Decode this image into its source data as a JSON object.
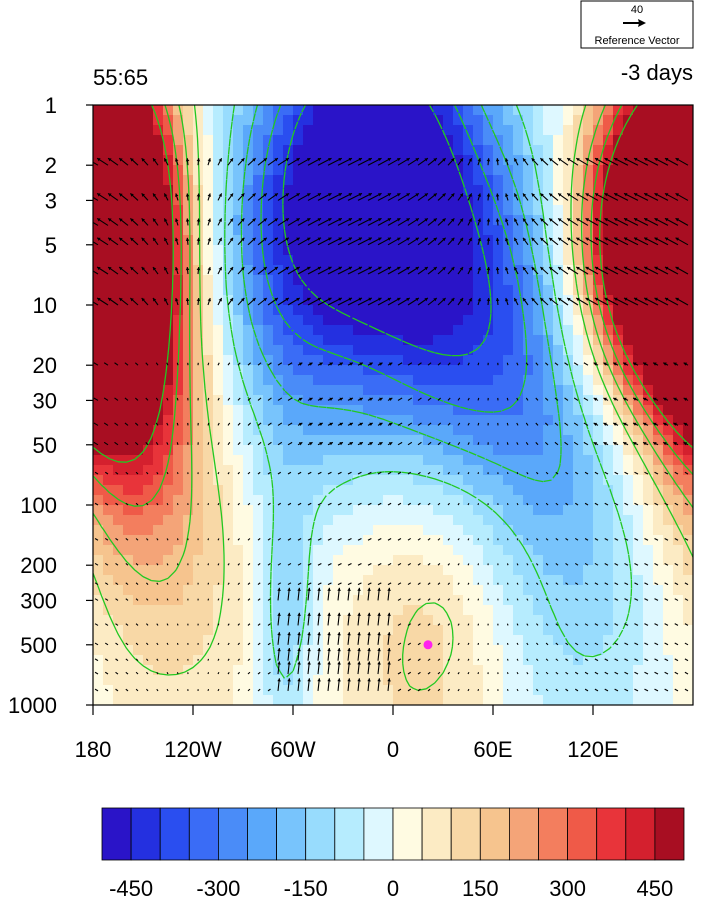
{
  "chart_data": {
    "type": "heatmap",
    "title_left": "55:65",
    "title_right": "-3 days",
    "reference_vector": {
      "magnitude_label": "40",
      "label": "Reference Vector"
    },
    "x_axis": {
      "range": [
        -180,
        180
      ],
      "ticks": [
        {
          "value": -180,
          "label": "180"
        },
        {
          "value": -120,
          "label": "120W"
        },
        {
          "value": -60,
          "label": "60W"
        },
        {
          "value": 0,
          "label": "0"
        },
        {
          "value": 60,
          "label": "60E"
        },
        {
          "value": 120,
          "label": "120E"
        }
      ]
    },
    "y_axis": {
      "scale": "log",
      "reversed": true,
      "range": [
        1,
        1000
      ],
      "ticks": [
        {
          "value": 1,
          "label": "1"
        },
        {
          "value": 2,
          "label": "2"
        },
        {
          "value": 3,
          "label": "3"
        },
        {
          "value": 5,
          "label": "5"
        },
        {
          "value": 10,
          "label": "10"
        },
        {
          "value": 20,
          "label": "20"
        },
        {
          "value": 30,
          "label": "30"
        },
        {
          "value": 50,
          "label": "50"
        },
        {
          "value": 100,
          "label": "100"
        },
        {
          "value": 200,
          "label": "200"
        },
        {
          "value": 300,
          "label": "300"
        },
        {
          "value": 500,
          "label": "500"
        },
        {
          "value": 1000,
          "label": "1000"
        }
      ]
    },
    "colorbar": {
      "levels": [
        -500,
        -450,
        -400,
        -350,
        -300,
        -250,
        -200,
        -150,
        -100,
        -50,
        0,
        50,
        100,
        150,
        200,
        250,
        300,
        350,
        400,
        450,
        500
      ],
      "colors": [
        "#2a14c8",
        "#2430e0",
        "#2a4ef0",
        "#3a6cf6",
        "#4a8cf8",
        "#5aa8fa",
        "#78c4fc",
        "#98dcfd",
        "#b6ecfe",
        "#def8ff",
        "#fffbe2",
        "#fcebc4",
        "#f8d8a6",
        "#f6c48e",
        "#f4a478",
        "#f37e5e",
        "#ef5a48",
        "#e8343a",
        "#d4202e",
        "#a80e22"
      ],
      "tick_labels": [
        {
          "value": -450,
          "label": "-450"
        },
        {
          "value": -300,
          "label": "-300"
        },
        {
          "value": -150,
          "label": "-150"
        },
        {
          "value": 0,
          "label": "0"
        },
        {
          "value": 150,
          "label": "150"
        },
        {
          "value": 300,
          "label": "300"
        },
        {
          "value": 450,
          "label": "450"
        }
      ]
    },
    "shading_field": {
      "description_of_centers": "pattern of anomaly centers, value units as colorbar",
      "centers": [
        {
          "lon": -165,
          "p": 3,
          "value": 520,
          "slon": 28,
          "sp": 0.55
        },
        {
          "lon": -170,
          "p": 12,
          "value": 430,
          "slon": 30,
          "sp": 0.55
        },
        {
          "lon": -150,
          "p": 40,
          "value": 200,
          "slon": 40,
          "sp": 0.6
        },
        {
          "lon": 165,
          "p": 3,
          "value": 520,
          "slon": 30,
          "sp": 0.55
        },
        {
          "lon": 140,
          "p": 6,
          "value": 380,
          "slon": 30,
          "sp": 0.5
        },
        {
          "lon": -10,
          "p": 2,
          "value": -560,
          "slon": 45,
          "sp": 0.6
        },
        {
          "lon": 40,
          "p": 15,
          "value": -330,
          "slon": 55,
          "sp": 0.7
        },
        {
          "lon": -70,
          "p": 10,
          "value": -220,
          "slon": 35,
          "sp": 0.7
        },
        {
          "lon": 110,
          "p": 100,
          "value": -150,
          "slon": 40,
          "sp": 0.9
        },
        {
          "lon": 20,
          "p": 300,
          "value": 160,
          "slon": 40,
          "sp": 0.7
        },
        {
          "lon": -65,
          "p": 400,
          "value": -160,
          "slon": 12,
          "sp": 0.45
        },
        {
          "lon": -130,
          "p": 300,
          "value": 90,
          "slon": 40,
          "sp": 0.8
        }
      ],
      "marker": {
        "lon": 21,
        "p": 500,
        "color": "#ff22ee"
      }
    },
    "contour_color": "#22c822",
    "vector_color": "#000000"
  }
}
